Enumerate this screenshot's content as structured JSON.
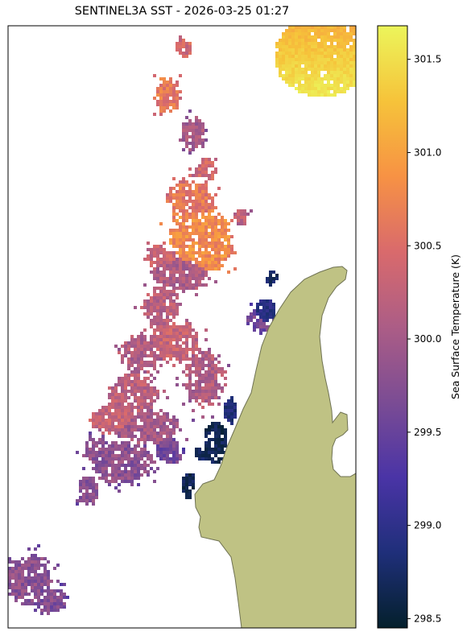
{
  "title": "SENTINEL3A SST - 2026-03-25 01:27",
  "colorbar": {
    "label": "Sea Surface Temperature (K)",
    "min": 298.45,
    "max": 301.68,
    "ticks": [
      {
        "value": 298.5,
        "label": "298.5"
      },
      {
        "value": 299.0,
        "label": "299.0"
      },
      {
        "value": 299.5,
        "label": "299.5"
      },
      {
        "value": 300.0,
        "label": "300.0"
      },
      {
        "value": 300.5,
        "label": "300.5"
      },
      {
        "value": 301.0,
        "label": "301.0"
      },
      {
        "value": 301.5,
        "label": "301.5"
      }
    ],
    "colormap": [
      "#04202c",
      "#1f2f7a",
      "#4a34a6",
      "#7b4c94",
      "#ac5d86",
      "#d96a6c",
      "#f79244",
      "#f6c33a",
      "#ecf55b"
    ]
  },
  "colors": {
    "land": "#bfc284",
    "land_edge": "#6f7253",
    "frame": "#000000"
  }
}
